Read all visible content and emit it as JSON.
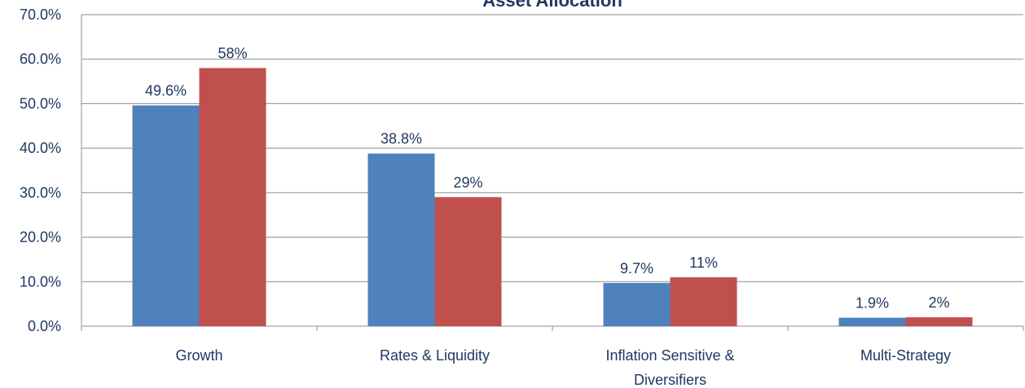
{
  "chart_data": {
    "type": "bar",
    "title": "Asset Allocation",
    "categories": [
      "Growth",
      "Rates & Liquidity",
      "Inflation Sensitive & Diversifiers",
      "Multi-Strategy"
    ],
    "series": [
      {
        "color": "#4f81bd",
        "values": [
          49.6,
          38.8,
          9.7,
          1.9
        ],
        "value_labels": [
          "49.6%",
          "38.8%",
          "9.7%",
          "1.9%"
        ]
      },
      {
        "color": "#c0504d",
        "values": [
          58,
          29,
          11,
          2
        ],
        "value_labels": [
          "58%",
          "29%",
          "11%",
          "2%"
        ]
      }
    ],
    "ylim": [
      0,
      70
    ],
    "yticks": [
      {
        "value": 0,
        "label": "0.0%"
      },
      {
        "value": 10,
        "label": "10.0%"
      },
      {
        "value": 20,
        "label": "20.0%"
      },
      {
        "value": 30,
        "label": "30.0%"
      },
      {
        "value": 40,
        "label": "40.0%"
      },
      {
        "value": 50,
        "label": "50.0%"
      },
      {
        "value": 60,
        "label": "60.0%"
      },
      {
        "value": 70,
        "label": "70.0%"
      }
    ],
    "grid": true
  }
}
